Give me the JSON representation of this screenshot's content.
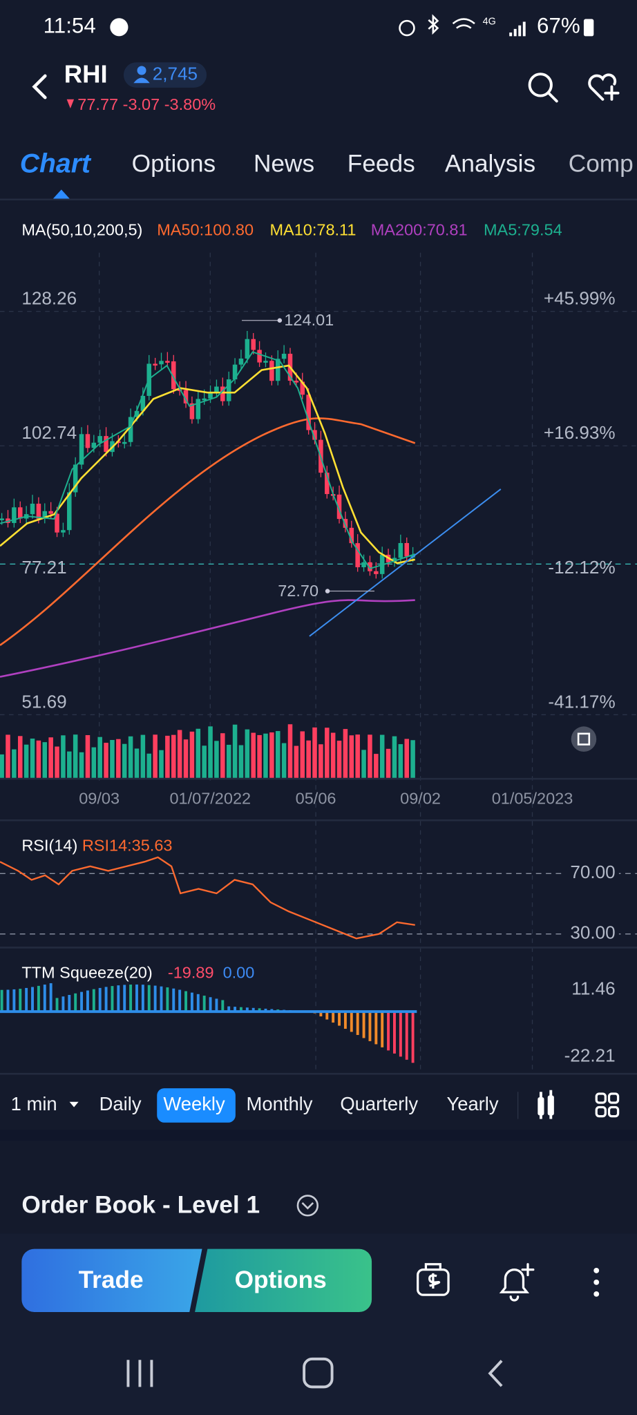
{
  "status_bar": {
    "time": "11:54",
    "battery": "67%"
  },
  "header": {
    "symbol": "RHI",
    "followers": "2,745",
    "quote": "77.77 -3.07 -3.80%"
  },
  "tabs": [
    "Chart",
    "Options",
    "News",
    "Feeds",
    "Analysis",
    "Comp"
  ],
  "indicator": {
    "label": "MA(50,10,200,5)",
    "ma50": "MA50:100.80",
    "ma10": "MA10:78.11",
    "ma200": "MA200:70.81",
    "ma5": "MA5:79.54"
  },
  "price_axis": {
    "left": [
      "128.26",
      "102.74",
      "77.21",
      "51.69"
    ],
    "right": [
      "+45.99%",
      "+16.93%",
      "-12.12%",
      "-41.17%"
    ]
  },
  "annotations": {
    "high": "124.01",
    "low": "72.70"
  },
  "dates": [
    "09/03",
    "01/07/2022",
    "05/06",
    "09/02",
    "01/05/2023"
  ],
  "rsi": {
    "label": "RSI(14)",
    "value": "RSI14:35.63",
    "levels": [
      "70.00",
      "30.00"
    ]
  },
  "ttm": {
    "label": "TTM Squeeze(20)",
    "value1": "-19.89",
    "value2": "0.00",
    "levels": [
      "11.46",
      "-22.21"
    ]
  },
  "timeframes": [
    "1 min",
    "Daily",
    "Weekly",
    "Monthly",
    "Quarterly",
    "Yearly"
  ],
  "order_book": {
    "title": "Order Book - Level 1"
  },
  "actions": {
    "trade": "Trade",
    "options": "Options"
  }
}
